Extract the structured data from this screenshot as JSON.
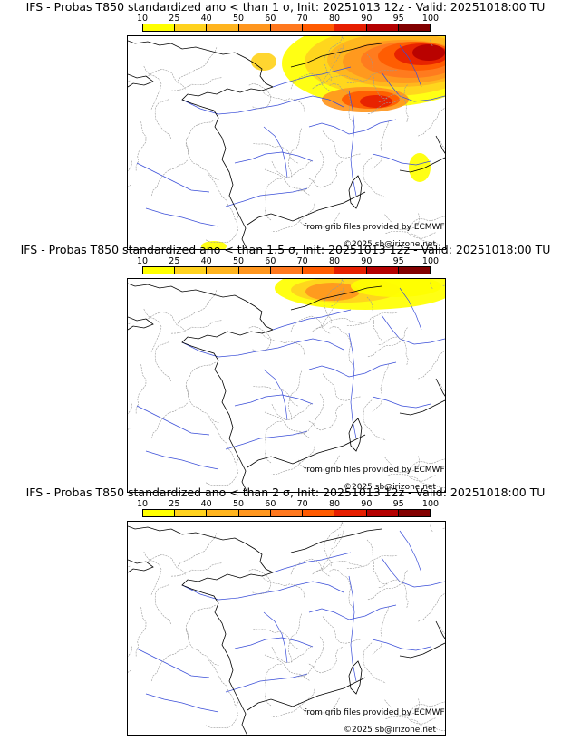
{
  "colorbar": {
    "ticks": [
      "10",
      "25",
      "40",
      "50",
      "60",
      "70",
      "80",
      "90",
      "95",
      "100"
    ],
    "colors": [
      "#ffff00",
      "#ffd21e",
      "#ffb41e",
      "#ff961e",
      "#ff781e",
      "#ff5a00",
      "#e61e00",
      "#b40000",
      "#820000"
    ]
  },
  "panels": [
    {
      "title": "IFS - Probas T850  standardized ano < than 1 σ, Init: 20251013 12z - Valid: 20251018:00 TU",
      "source_credit": "from grib files provided by ECMWF",
      "copyright": "©2025 sb@irizone.net",
      "anomaly_sigma": 1
    },
    {
      "title": "IFS - Probas T850  standardized ano < than 1.5 σ, Init: 20251013 12z - Valid: 20251018:00 TU",
      "source_credit": "from grib files provided by ECMWF",
      "copyright": "©2025 sb@irizone.net",
      "anomaly_sigma": 1.5
    },
    {
      "title": "IFS - Probas T850  standardized ano < than 2 σ, Init: 20251013 12z - Valid: 20251018:00 TU",
      "source_credit": "from grib files provided by ECMWF",
      "copyright": "©2025 sb@irizone.net",
      "anomaly_sigma": 2
    }
  ]
}
